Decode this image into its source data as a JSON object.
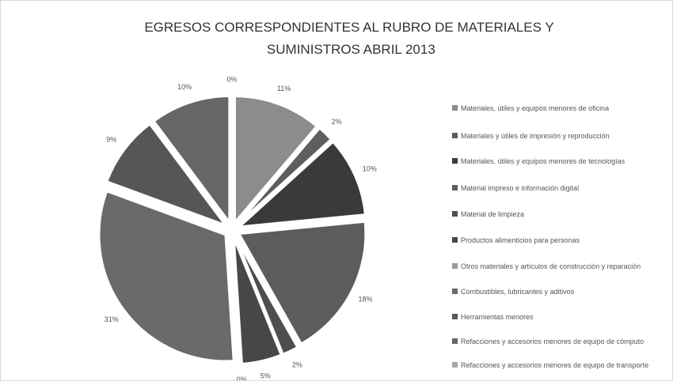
{
  "chart_data": {
    "type": "pie",
    "title": "EGRESOS CORRESPONDIENTES AL RUBRO DE MATERIALES Y SUMINISTROS ABRIL 2013",
    "categories": [
      "Materiales, útiles y equipos menores de oficina",
      "Materiales y útiles de impresión y reproducción",
      "Materiales, útiles y equipos menores de tecnologías",
      "Material impreso e información digital",
      "Material de limpieza",
      "Productos alimenticios para personas",
      "Otros materiales y artículos de construcción y reparación",
      "Combustibles, lubricantes y aditivos",
      "Herramientas menores",
      "Refacciones y accesorios menores de equipo de cómputo",
      "Refacciones y accesorios menores de equipo de transporte"
    ],
    "values": [
      11,
      2,
      10,
      18,
      2,
      5,
      0,
      31,
      9,
      10,
      0
    ],
    "value_labels": [
      "11%",
      "2%",
      "10%",
      "18%",
      "2%",
      "5%",
      "0%",
      "31%",
      "9%",
      "10%",
      "0%"
    ],
    "colors": [
      "#8c8c8c",
      "#5e5e5e",
      "#3a3a3a",
      "#5c5c5c",
      "#4e4e4e",
      "#474747",
      "#9a9a9a",
      "#6a6a6a",
      "#565656",
      "#666666",
      "#a8a8a8"
    ]
  }
}
